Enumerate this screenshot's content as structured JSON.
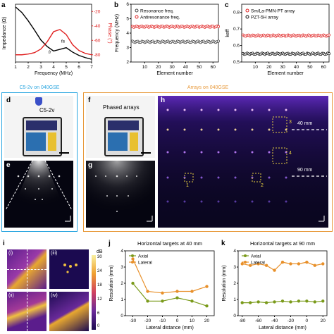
{
  "panel_labels": {
    "a": "a",
    "b": "b",
    "c": "c",
    "d": "d",
    "e": "e",
    "f": "f",
    "g": "g",
    "h": "h",
    "i": "i",
    "j": "j",
    "k": "k"
  },
  "section_titles": {
    "left": "C5-2v on 040GSE",
    "right": "Arrays on 040GSE"
  },
  "photo_labels": {
    "d": "C5-2v",
    "f": "Phased arrays"
  },
  "h_annotations": {
    "mm40": "40 mm",
    "mm90": "90 mm",
    "boxes": [
      "1",
      "2",
      "3",
      "4"
    ]
  },
  "i_labels": {
    "sub": [
      "(i)",
      "(ii)",
      "(iii)",
      "(iv)"
    ],
    "cbar_unit": "dB",
    "cbar_ticks": [
      "0",
      "6",
      "12",
      "18",
      "24",
      "30"
    ]
  },
  "chart_data": [
    {
      "id": "a",
      "type": "line",
      "xlabel": "Frequency (MHz)",
      "ylabel": "Impedance (Ω)",
      "y2label": "Phase (°)",
      "xticks": [
        "1",
        "2",
        "3",
        "4",
        "5",
        "6",
        "7"
      ],
      "y2ticks": [
        "-20",
        "-40",
        "-60",
        "-80"
      ],
      "annotations": [
        "fr",
        "fa"
      ],
      "series": [
        {
          "color": "#000000",
          "x": [
            1.0,
            1.5,
            2.0,
            2.5,
            3.0,
            3.5,
            4.0,
            4.5,
            5.0,
            5.5,
            6.0,
            6.5,
            7.0
          ],
          "y": [
            100,
            90,
            75,
            58,
            40,
            28,
            20,
            23,
            26,
            18,
            12,
            8,
            5
          ]
        },
        {
          "color": "#e02020",
          "x": [
            1.0,
            1.5,
            2.0,
            2.5,
            3.0,
            3.5,
            4.0,
            4.5,
            5.0,
            5.5,
            6.0,
            6.5,
            7.0
          ],
          "y": [
            -80,
            -80,
            -79,
            -77,
            -72,
            -62,
            -48,
            -45,
            -52,
            -66,
            -74,
            -78,
            -80
          ]
        }
      ]
    },
    {
      "id": "b",
      "type": "scatter",
      "xlabel": "Element number",
      "ylabel": "Frequency (MHz)",
      "xlim": [
        0,
        64
      ],
      "ylim": [
        2,
        6
      ],
      "xticks": [
        "10",
        "20",
        "30",
        "40",
        "50",
        "60"
      ],
      "yticks": [
        "2",
        "3",
        "4",
        "5",
        "6"
      ],
      "series": [
        {
          "name": "Resonance freq.",
          "color": "#444444",
          "value": 3.4
        },
        {
          "name": "Antiresonance freq.",
          "color": "#e02020",
          "value": 4.45
        }
      ]
    },
    {
      "id": "c",
      "type": "scatter",
      "xlabel": "Element number",
      "ylabel": "keff",
      "xlim": [
        0,
        64
      ],
      "ylim": [
        0.5,
        0.85
      ],
      "xticks": [
        "10",
        "20",
        "30",
        "40",
        "50",
        "60"
      ],
      "yticks": [
        "0.5",
        "0.6",
        "0.7",
        "0.8"
      ],
      "series": [
        {
          "name": "Sm/La-PMN-PT array",
          "color": "#e02020",
          "value": 0.66
        },
        {
          "name": "PZT-5H array",
          "color": "#111111",
          "value": 0.55
        }
      ]
    },
    {
      "id": "j",
      "type": "line",
      "title": "Horizontal targets at 40 mm",
      "xlabel": "Lateral distance (mm)",
      "ylabel": "Resolution (mm)",
      "xlim": [
        -35,
        25
      ],
      "ylim": [
        0,
        4
      ],
      "xticks": [
        "-30",
        "-20",
        "-10",
        "0",
        "10",
        "20"
      ],
      "yticks": [
        "0",
        "1",
        "2",
        "3",
        "4"
      ],
      "categories": [
        -30,
        -20,
        -10,
        0,
        10,
        20
      ],
      "series": [
        {
          "name": "Axial",
          "color": "#7a9a1a",
          "values": [
            2.0,
            0.9,
            0.9,
            1.1,
            0.9,
            0.6
          ]
        },
        {
          "name": "Lateral",
          "color": "#e8902a",
          "values": [
            3.5,
            1.5,
            1.4,
            1.5,
            1.5,
            1.8
          ]
        }
      ]
    },
    {
      "id": "k",
      "type": "line",
      "title": "Horizontal targets at 90 mm",
      "xlabel": "Lateral distance (mm)",
      "ylabel": "Resolution (mm)",
      "xlim": [
        -85,
        25
      ],
      "ylim": [
        0,
        4
      ],
      "xticks": [
        "-80",
        "-60",
        "-40",
        "-20",
        "0",
        "20"
      ],
      "yticks": [
        "0",
        "1",
        "2",
        "3",
        "4"
      ],
      "categories": [
        -80,
        -70,
        -60,
        -50,
        -40,
        -30,
        -20,
        -10,
        0,
        10,
        20
      ],
      "series": [
        {
          "name": "Axial",
          "color": "#7a9a1a",
          "values": [
            0.8,
            0.8,
            0.85,
            0.8,
            0.85,
            0.9,
            0.85,
            0.9,
            0.9,
            0.85,
            0.9
          ]
        },
        {
          "name": "Lateral",
          "color": "#e8902a",
          "values": [
            3.2,
            3.1,
            3.2,
            3.1,
            2.8,
            3.3,
            3.2,
            3.2,
            3.3,
            3.1,
            3.2
          ]
        }
      ]
    }
  ]
}
